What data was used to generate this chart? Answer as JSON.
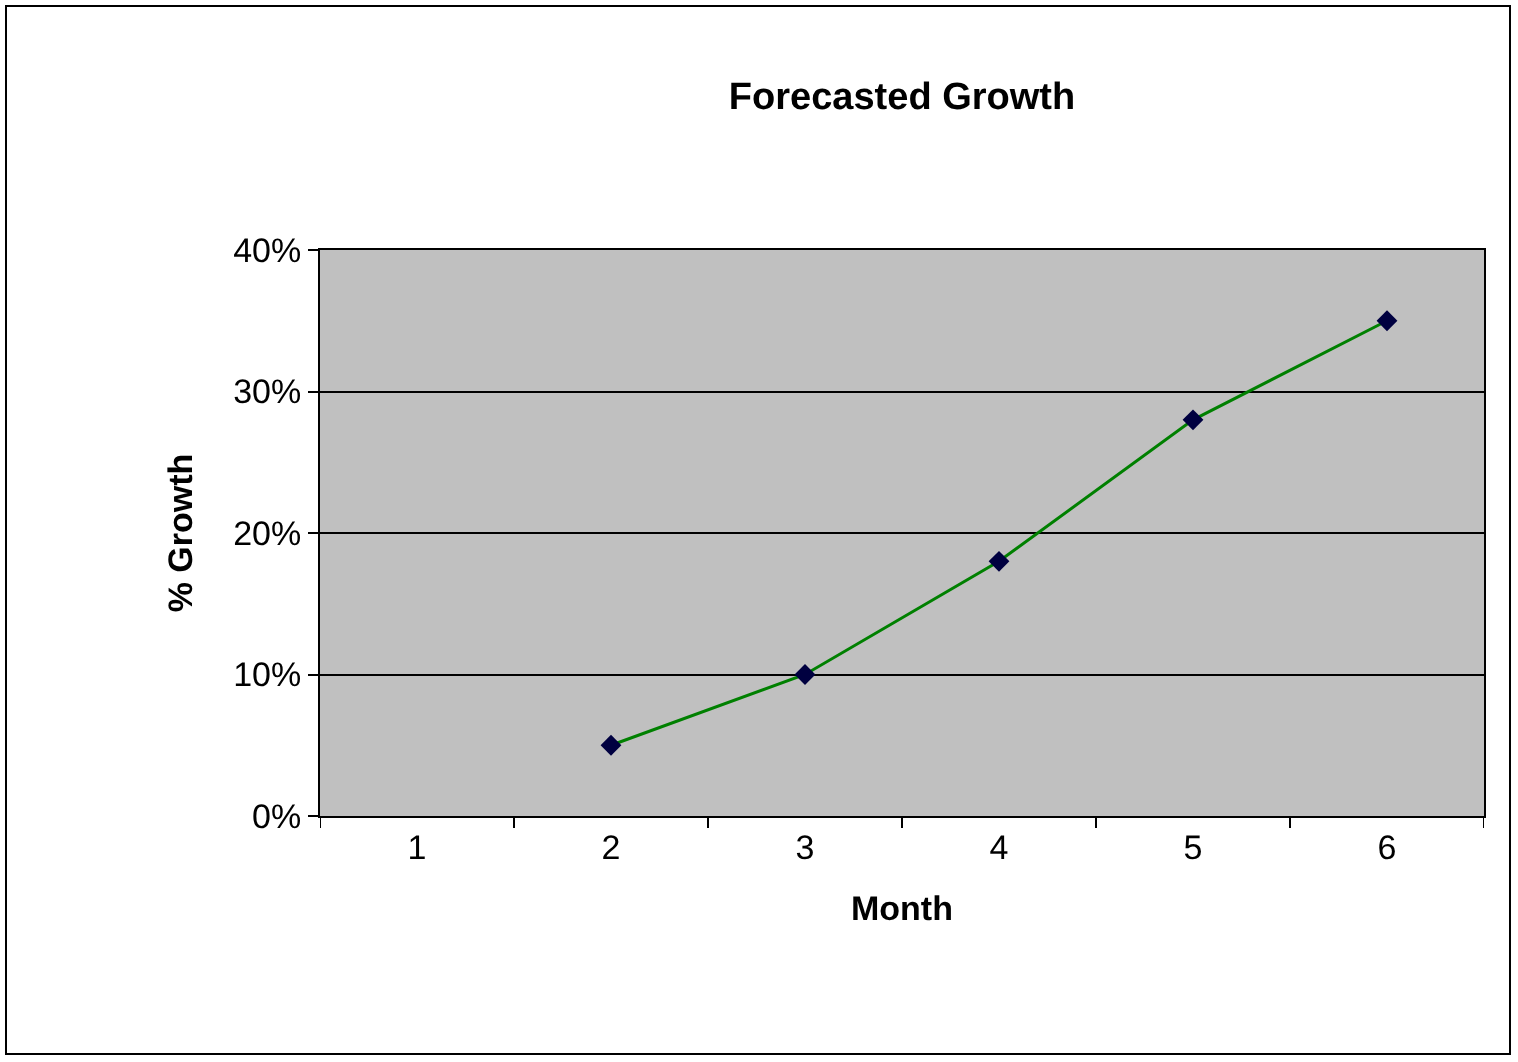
{
  "chart_data": {
    "type": "line",
    "title": "Forecasted Growth",
    "xlabel": "Month",
    "ylabel": "% Growth",
    "categories": [
      "1",
      "2",
      "3",
      "4",
      "5",
      "6"
    ],
    "series": [
      {
        "color": "#008000",
        "values": [
          null,
          5,
          10,
          18,
          28,
          35
        ]
      }
    ],
    "ylim": [
      0,
      40
    ],
    "yticks": [
      {
        "value": 0,
        "label": "0%"
      },
      {
        "value": 10,
        "label": "10%"
      },
      {
        "value": 20,
        "label": "20%"
      },
      {
        "value": 30,
        "label": "30%"
      },
      {
        "value": 40,
        "label": "40%"
      }
    ],
    "grid": "y",
    "marker": "diamond",
    "line_style": "solid",
    "legend": false
  }
}
